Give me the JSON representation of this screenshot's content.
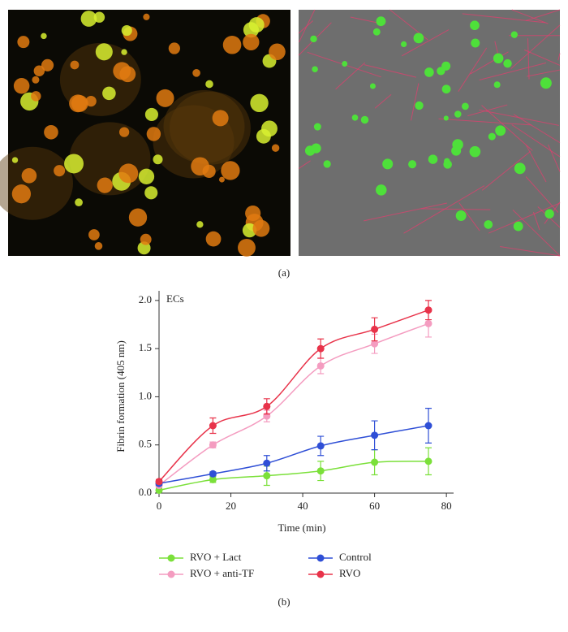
{
  "panel_labels": [
    "(a)",
    "(b)"
  ],
  "chart_data": {
    "type": "line",
    "y_label": "Fibrin formation (405 nm)",
    "x_label": "Time (min)",
    "annotation": "ECs",
    "x": [
      0,
      15,
      30,
      45,
      60,
      75
    ],
    "xlim": [
      0,
      82
    ],
    "xticks": [
      0,
      20,
      40,
      60,
      80
    ],
    "ylim": [
      0,
      2.1
    ],
    "yticks": [
      {
        "value": 0,
        "label": "0.0"
      },
      0.5,
      {
        "value": 1,
        "label": "1.0"
      },
      1.5,
      {
        "value": 2,
        "label": "2.0"
      }
    ],
    "series": [
      {
        "name": "RVO + Lact",
        "color": "#7be03a",
        "values": [
          0.03,
          0.14,
          0.18,
          0.23,
          0.32,
          0.33
        ],
        "errors": [
          0.02,
          0.03,
          0.1,
          0.1,
          0.13,
          0.14
        ]
      },
      {
        "name": "RVO + anti-TF",
        "color": "#f49cc0",
        "values": [
          0.08,
          0.5,
          0.8,
          1.32,
          1.55,
          1.76
        ],
        "errors": [
          0.02,
          0.03,
          0.06,
          0.08,
          0.1,
          0.14
        ]
      },
      {
        "name": "Control",
        "color": "#2f4fd6",
        "values": [
          0.1,
          0.2,
          0.31,
          0.49,
          0.6,
          0.7
        ],
        "errors": [
          0.02,
          0.02,
          0.08,
          0.1,
          0.15,
          0.18
        ]
      },
      {
        "name": "RVO",
        "color": "#e8334a",
        "values": [
          0.12,
          0.7,
          0.9,
          1.5,
          1.7,
          1.9
        ],
        "errors": [
          0.02,
          0.08,
          0.08,
          0.1,
          0.12,
          0.1
        ]
      }
    ]
  }
}
